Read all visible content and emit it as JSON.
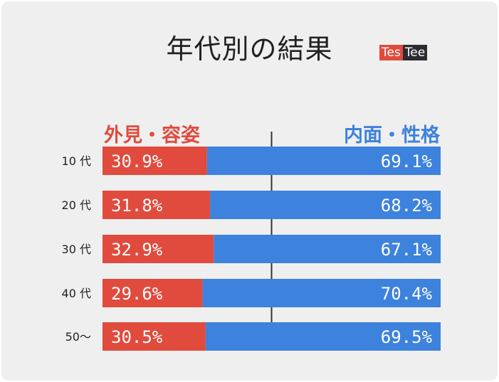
{
  "title": "年代別の結果",
  "logo": {
    "part1": "Tes",
    "part2": "Tee"
  },
  "colors": {
    "left": "#e04b3d",
    "right": "#3d82dc",
    "background": "#efefef"
  },
  "chart_data": {
    "type": "bar",
    "stacked": true,
    "orientation": "horizontal",
    "title": "年代別の結果",
    "categories": [
      "10 代",
      "20 代",
      "30 代",
      "40 代",
      "50～"
    ],
    "series": [
      {
        "name": "外見・容姿",
        "values": [
          30.9,
          31.8,
          32.9,
          29.6,
          30.5
        ],
        "labels": [
          "30.9%",
          "31.8%",
          "32.9%",
          "29.6%",
          "30.5%"
        ]
      },
      {
        "name": "内面・性格",
        "values": [
          69.1,
          68.2,
          67.1,
          70.4,
          69.5
        ],
        "labels": [
          "69.1%",
          "68.2%",
          "67.1%",
          "70.4%",
          "69.5%"
        ]
      }
    ],
    "xlim": [
      0,
      100
    ],
    "reference_line": 50
  }
}
